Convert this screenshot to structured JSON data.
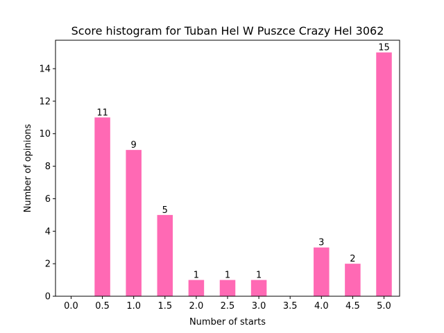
{
  "chart_data": {
    "type": "bar",
    "title": "Score histogram for Tuban Hel W Puszce Crazy Hel 3062",
    "xlabel": "Number of starts",
    "ylabel": "Number of opinions",
    "categories": [
      "0.0",
      "0.5",
      "1.0",
      "1.5",
      "2.0",
      "2.5",
      "3.0",
      "3.5",
      "4.0",
      "4.5",
      "5.0"
    ],
    "values": [
      0,
      11,
      9,
      5,
      1,
      1,
      1,
      0,
      3,
      2,
      15
    ],
    "data_labels": [
      "",
      "11",
      "9",
      "5",
      "1",
      "1",
      "1",
      "",
      "3",
      "2",
      "15"
    ],
    "yticks": [
      "0",
      "2",
      "4",
      "6",
      "8",
      "10",
      "12",
      "14"
    ],
    "ylim": [
      0,
      15.75
    ],
    "bar_color": "#ff69b4",
    "grid": false,
    "legend": "none"
  }
}
